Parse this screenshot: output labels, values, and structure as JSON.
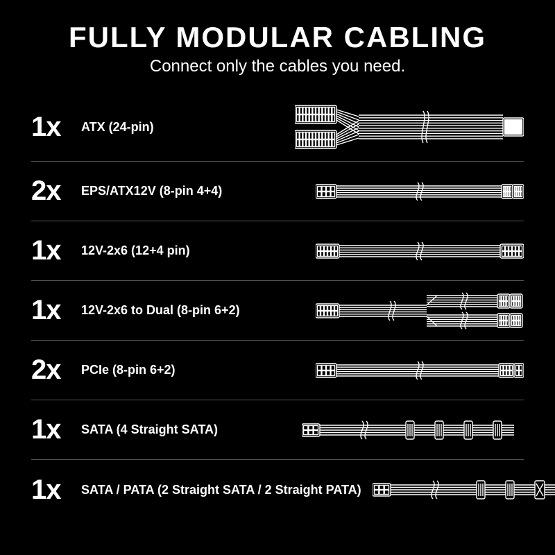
{
  "title": "FULLY MODULAR CABLING",
  "subtitle": "Connect only the cables you need.",
  "colors": {
    "background": "#000000",
    "foreground": "#ffffff",
    "divider": "#555555"
  },
  "typography": {
    "title_fontsize": 42,
    "subtitle_fontsize": 24,
    "qty_fontsize": 40,
    "desc_fontsize": 18,
    "font_family": "Arial Narrow, Arial, sans-serif"
  },
  "rows": [
    {
      "qty": "1x",
      "desc": "ATX (24-pin)",
      "illustration": "atx24"
    },
    {
      "qty": "2x",
      "desc": "EPS/ATX12V (8-pin 4+4)",
      "illustration": "eps8"
    },
    {
      "qty": "1x",
      "desc": "12V-2x6 (12+4 pin)",
      "illustration": "c12v2x6"
    },
    {
      "qty": "1x",
      "desc": "12V-2x6 to Dual (8-pin 6+2)",
      "illustration": "dual8"
    },
    {
      "qty": "2x",
      "desc": "PCIe (8-pin 6+2)",
      "illustration": "pcie8"
    },
    {
      "qty": "1x",
      "desc": "SATA (4 Straight SATA)",
      "illustration": "sata4"
    },
    {
      "qty": "1x",
      "desc": "SATA / PATA (2 Straight SATA / 2 Straight PATA)",
      "illustration": "satapata"
    }
  ],
  "illustration_style": {
    "stroke": "#ffffff",
    "stroke_width": 1.4,
    "fill": "#000000",
    "break_mark": "s-curve"
  }
}
